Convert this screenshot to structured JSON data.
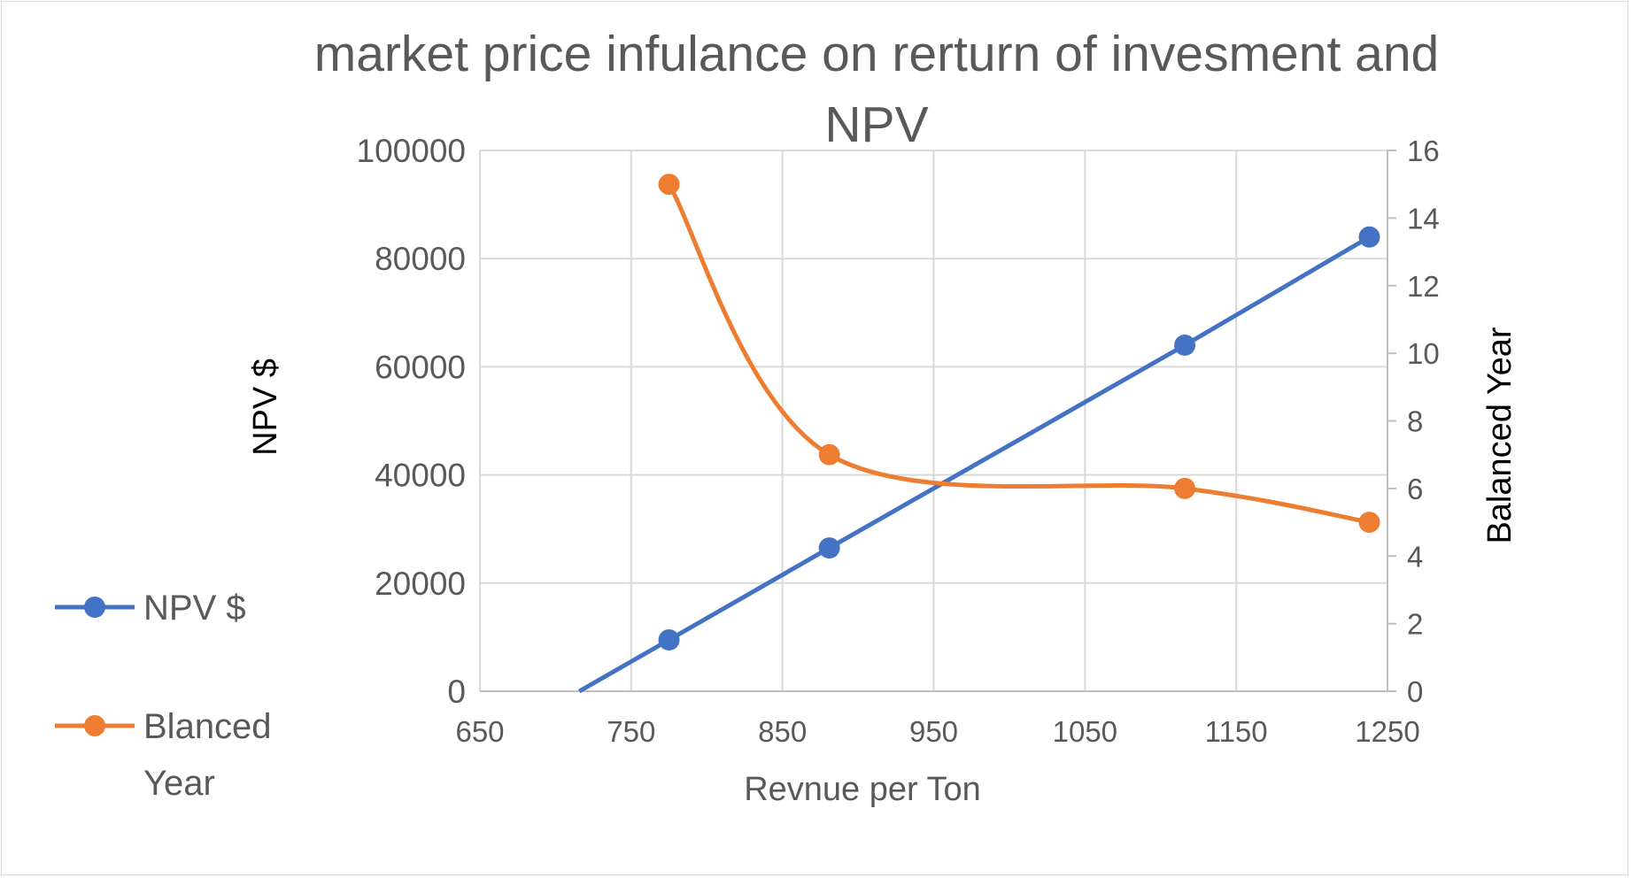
{
  "chart_data": {
    "type": "line",
    "title_lines": [
      "market price infulance on rerturn of invesment and",
      "NPV"
    ],
    "xlabel": "Revnue per Ton",
    "ylabel_left": "NPV $",
    "ylabel_right": "Balanced Year",
    "xlim": [
      650,
      1250
    ],
    "ylim_left": [
      0,
      100000
    ],
    "ylim_right": [
      0,
      16
    ],
    "x_ticks": [
      "650",
      "750",
      "850",
      "950",
      "1050",
      "1150",
      "1250"
    ],
    "y_left_ticks": [
      "0",
      "20000",
      "40000",
      "60000",
      "80000",
      "100000"
    ],
    "y_right_ticks": [
      "0",
      "2",
      "4",
      "6",
      "8",
      "10",
      "12",
      "14",
      "16"
    ],
    "grid": true,
    "legend_position": "left",
    "series": [
      {
        "name": "NPV $",
        "axis": "left",
        "color": "#4472C4",
        "smooth": false,
        "x": [
          775,
          881,
          1116,
          1238
        ],
        "y": [
          9500,
          26500,
          64000,
          84000
        ],
        "clip_extension_to_x": 710
      },
      {
        "name": "Blanced Year",
        "name_lines": [
          "Blanced",
          "Year"
        ],
        "axis": "right",
        "color": "#ED7D31",
        "smooth": true,
        "x": [
          775,
          881,
          1116,
          1238
        ],
        "y": [
          15,
          7,
          6,
          5
        ]
      }
    ]
  }
}
